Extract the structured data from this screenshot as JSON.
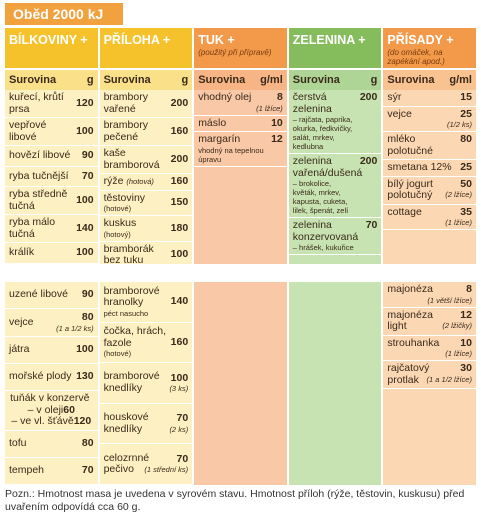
{
  "title": "Oběd 2000 kJ",
  "columns": [
    {
      "header": "BÍLKOVINY +",
      "subheader": {
        "name": "Surovina",
        "unit": "g"
      },
      "items": [
        {
          "name": "kuřecí, krůtí prsa",
          "amount": 120
        },
        {
          "name": "vepřové libové",
          "amount": 100
        },
        {
          "name": "hovězí libové",
          "amount": 90
        },
        {
          "name": "ryba tučnější",
          "amount": 70
        },
        {
          "name": "ryba středně tučná",
          "amount": 100
        },
        {
          "name": "ryba málo tučná",
          "amount": 140
        },
        {
          "name": "králík",
          "amount": 100
        }
      ],
      "items_lower": [
        {
          "name": "uzené libové",
          "amount": 90
        },
        {
          "name": "vejce",
          "amount": 80,
          "note": "(1 a 1/2 ks)"
        },
        {
          "name": "játra",
          "amount": 100
        },
        {
          "name": "mořské plody",
          "amount": 130
        },
        {
          "name": "tuňák v konzervě",
          "parts": [
            {
              "name": "– v oleji",
              "amount": 60
            },
            {
              "name": "– ve vl. šťávě",
              "amount": 120
            }
          ]
        },
        {
          "name": "tofu",
          "amount": 80
        },
        {
          "name": "tempeh",
          "amount": 70
        }
      ]
    },
    {
      "header": "PŘÍLOHA +",
      "subheader": {
        "name": "Surovina",
        "unit": "g"
      },
      "items": [
        {
          "name": "brambory vařené",
          "amount": 200
        },
        {
          "name": "brambory pečené",
          "amount": 160
        },
        {
          "name": "kaše bramborová",
          "amount": 200
        },
        {
          "name": "rýže",
          "inline": "(hotová)",
          "amount": 160
        },
        {
          "name": "těstoviny",
          "detail": "(hotové)",
          "amount": 150
        },
        {
          "name": "kuskus",
          "detail": "(hotový)",
          "amount": 180
        },
        {
          "name": "bramborák bez tuku",
          "amount": 100
        }
      ],
      "items_lower": [
        {
          "name": "bramborové hranolky",
          "detail": "péct nasucho",
          "amount": 140
        },
        {
          "name": "čočka, hrách, fazole",
          "detail": "(hotové)",
          "amount": 160
        },
        {
          "name": "bramborové knedlíky",
          "amount": 100,
          "note": "(3 ks)"
        },
        {
          "name": "houskové knedlíky",
          "amount": 70,
          "note": "(2 ks)"
        },
        {
          "name": "celozrnné pečivo",
          "amount": 70,
          "note": "(1 střední ks)"
        }
      ]
    },
    {
      "header": "TUK +",
      "header_note": "(použitý při přípravě)",
      "subheader": {
        "name": "Surovina",
        "unit": "g/ml"
      },
      "items": [
        {
          "name": "vhodný olej",
          "amount": 8,
          "note": "(1 lžíce)"
        },
        {
          "name": "máslo",
          "amount": 10
        },
        {
          "name": "margarín",
          "detail": "vhodný na tepelnou úpravu",
          "amount": 12
        }
      ],
      "items_lower": []
    },
    {
      "header": "ZELENINA +",
      "subheader": {
        "name": "Surovina",
        "unit": "g"
      },
      "items": [
        {
          "name": "čerstvá zelenina",
          "detail": "– rajčata, paprika, okurka, ředkvičky, salát, mrkev, kedlubna",
          "amount": 200
        },
        {
          "name": "zelenina vařená/dušená",
          "detail": "– brokolice, květák, mrkev, kapusta, cuketa, lilek, špenát, zelí",
          "amount": 200
        },
        {
          "name": "zelenina konzervovaná",
          "detail": "– hrášek, kukuřice",
          "amount": 70
        }
      ],
      "items_lower": []
    },
    {
      "header": "PŘÍSADY +",
      "header_note": "(do omáček, na zapékání apod.)",
      "subheader": {
        "name": "Surovina",
        "unit": "g/ml"
      },
      "items": [
        {
          "name": "sýr",
          "amount": 15
        },
        {
          "name": "vejce",
          "amount": 25,
          "note": "(1/2 ks)"
        },
        {
          "name": "mléko polotučné",
          "amount": 80
        },
        {
          "name": "smetana 12%",
          "amount": 25
        },
        {
          "name": "bílý jogurt polotučný",
          "amount": 50,
          "note": "(2 lžíce)"
        },
        {
          "name": "cottage",
          "amount": 35,
          "note": "(1 lžíce)"
        }
      ],
      "items_lower": [
        {
          "name": "majonéza",
          "amount": 8,
          "note": "(1 větší lžíce)"
        },
        {
          "name": "majonéza light",
          "amount": 12,
          "note": "(2 lžičky)"
        },
        {
          "name": "strouhanka",
          "amount": 10,
          "note": "(1 lžíce)"
        },
        {
          "name": "rajčatový protlak",
          "amount": 30,
          "note": "(1 a 1/2 lžíce)"
        }
      ]
    }
  ],
  "footnote": "Pozn.: Hmotnost masa je uvedena v syrovém stavu. Hmotnost příloh (rýže, těstovin, kuskusu) před uvařením odpovídá cca 60 g."
}
